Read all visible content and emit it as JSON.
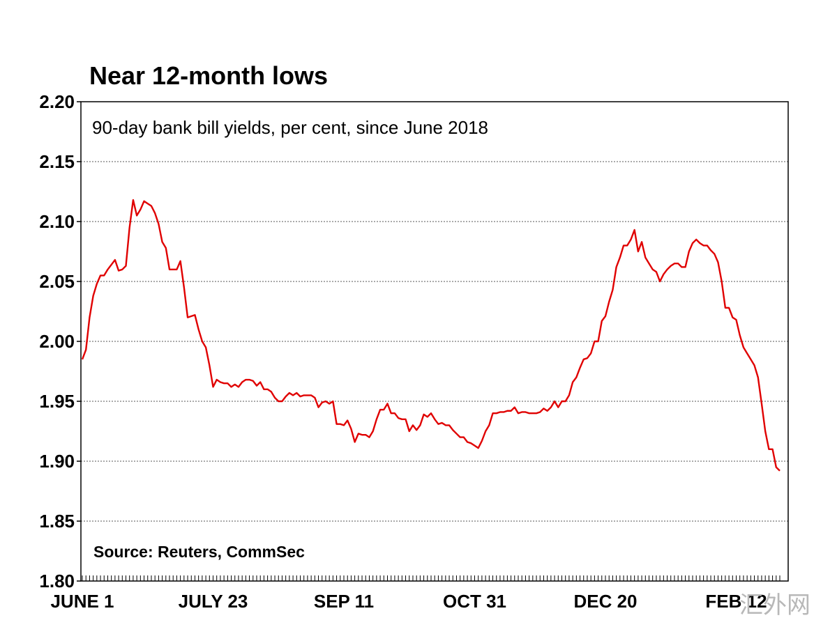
{
  "chart_data": {
    "type": "line",
    "title": "Near 12-month lows",
    "subtitle": "90-day bank bill yields, per cent, since June 2018",
    "source": "Source: Reuters, CommSec",
    "ylim": [
      1.8,
      2.2
    ],
    "yticks": [
      "2.20",
      "2.15",
      "2.10",
      "2.05",
      "2.00",
      "1.95",
      "1.90",
      "1.85",
      "1.80"
    ],
    "ytick_values": [
      2.2,
      2.15,
      2.1,
      2.05,
      2.0,
      1.95,
      1.9,
      1.85,
      1.8
    ],
    "xtick_labels": [
      "JUNE 1",
      "JULY 23",
      "SEP 11",
      "OCT 31",
      "DEC 20",
      "FEB 12"
    ],
    "xtick_index": [
      0,
      36,
      72,
      108,
      144,
      180
    ],
    "grid": true,
    "line_color": "#e00000",
    "series": [
      {
        "values": [
          1.985,
          1.993,
          2.02,
          2.038,
          2.048,
          2.055,
          2.055,
          2.06,
          2.064,
          2.068,
          2.059,
          2.06,
          2.063,
          2.095,
          2.118,
          2.105,
          2.11,
          2.117,
          2.115,
          2.113,
          2.107,
          2.098,
          2.083,
          2.078,
          2.06,
          2.06,
          2.06,
          2.067,
          2.045,
          2.02,
          2.021,
          2.022,
          2.01,
          2.0,
          1.995,
          1.98,
          1.962,
          1.968,
          1.966,
          1.965,
          1.965,
          1.962,
          1.964,
          1.962,
          1.966,
          1.968,
          1.968,
          1.967,
          1.963,
          1.966,
          1.96,
          1.96,
          1.958,
          1.953,
          1.95,
          1.95,
          1.954,
          1.957,
          1.955,
          1.957,
          1.954,
          1.955,
          1.955,
          1.955,
          1.953,
          1.945,
          1.949,
          1.95,
          1.948,
          1.95,
          1.931,
          1.931,
          1.93,
          1.934,
          1.927,
          1.916,
          1.923,
          1.922,
          1.922,
          1.92,
          1.925,
          1.935,
          1.943,
          1.943,
          1.948,
          1.94,
          1.94,
          1.936,
          1.935,
          1.935,
          1.925,
          1.93,
          1.926,
          1.93,
          1.939,
          1.937,
          1.94,
          1.935,
          1.931,
          1.932,
          1.93,
          1.93,
          1.926,
          1.923,
          1.92,
          1.92,
          1.916,
          1.915,
          1.913,
          1.911,
          1.917,
          1.925,
          1.93,
          1.94,
          1.94,
          1.941,
          1.941,
          1.942,
          1.942,
          1.945,
          1.94,
          1.941,
          1.941,
          1.94,
          1.94,
          1.94,
          1.941,
          1.944,
          1.942,
          1.945,
          1.95,
          1.945,
          1.95,
          1.95,
          1.955,
          1.966,
          1.97,
          1.978,
          1.985,
          1.986,
          1.99,
          2.0,
          2.0,
          2.017,
          2.021,
          2.033,
          2.043,
          2.062,
          2.07,
          2.08,
          2.08,
          2.085,
          2.093,
          2.075,
          2.083,
          2.07,
          2.065,
          2.06,
          2.058,
          2.05,
          2.056,
          2.06,
          2.063,
          2.065,
          2.065,
          2.062,
          2.062,
          2.075,
          2.082,
          2.085,
          2.082,
          2.08,
          2.08,
          2.076,
          2.073,
          2.066,
          2.05,
          2.028,
          2.028,
          2.02,
          2.018,
          2.005,
          1.995,
          1.99,
          1.985,
          1.98,
          1.97,
          1.948,
          1.925,
          1.91,
          1.91,
          1.895,
          1.892
        ]
      }
    ]
  },
  "watermark": "汇外网"
}
